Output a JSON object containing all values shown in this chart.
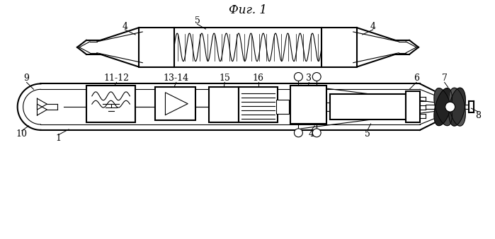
{
  "background_color": "#ffffff",
  "line_color": "#000000",
  "line_width": 1.5,
  "lw_thin": 0.8,
  "fig_label": "Фиг. 1"
}
